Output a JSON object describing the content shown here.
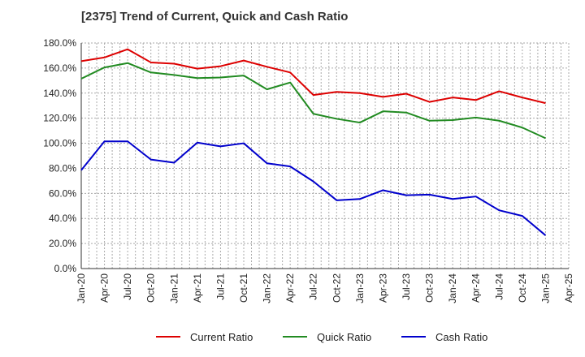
{
  "chart_data": {
    "type": "line",
    "title": "[2375]  Trend of Current, Quick and Cash Ratio",
    "xlabel": "",
    "ylabel": "",
    "ylim": [
      0,
      180
    ],
    "y_ticks": [
      "0.0%",
      "20.0%",
      "40.0%",
      "60.0%",
      "80.0%",
      "100.0%",
      "120.0%",
      "140.0%",
      "160.0%",
      "180.0%"
    ],
    "y_tick_values": [
      0,
      20,
      40,
      60,
      80,
      100,
      120,
      140,
      160,
      180
    ],
    "x_ticks": [
      "Jan-20",
      "Apr-20",
      "Jul-20",
      "Oct-20",
      "Jan-21",
      "Apr-21",
      "Jul-21",
      "Oct-21",
      "Jan-22",
      "Apr-22",
      "Jul-22",
      "Oct-22",
      "Jan-23",
      "Apr-23",
      "Jul-23",
      "Oct-23",
      "Jan-24",
      "Apr-24",
      "Jul-24",
      "Oct-24",
      "Jan-25",
      "Apr-25"
    ],
    "grid": true,
    "legend_position": "bottom",
    "series": [
      {
        "name": "Current Ratio",
        "color": "#dd0000",
        "values": [
          165.5,
          168.5,
          175.0,
          164.5,
          163.5,
          159.5,
          161.5,
          166.0,
          161.0,
          156.5,
          138.5,
          141.0,
          140.0,
          137.0,
          139.5,
          133.0,
          136.5,
          134.5,
          141.5,
          136.5,
          132.0
        ]
      },
      {
        "name": "Quick Ratio",
        "color": "#228b22",
        "values": [
          151.5,
          160.5,
          164.0,
          156.5,
          154.5,
          152.0,
          152.5,
          154.0,
          143.0,
          148.5,
          123.5,
          119.5,
          116.5,
          125.5,
          124.5,
          118.0,
          118.5,
          120.5,
          118.0,
          112.5,
          104.0
        ]
      },
      {
        "name": "Cash Ratio",
        "color": "#0000cc",
        "values": [
          78.5,
          101.5,
          101.5,
          87.0,
          84.5,
          100.5,
          97.5,
          100.0,
          84.0,
          81.5,
          69.5,
          54.5,
          55.5,
          62.5,
          58.5,
          59.0,
          55.5,
          57.5,
          46.5,
          42.0,
          26.5
        ]
      }
    ]
  }
}
